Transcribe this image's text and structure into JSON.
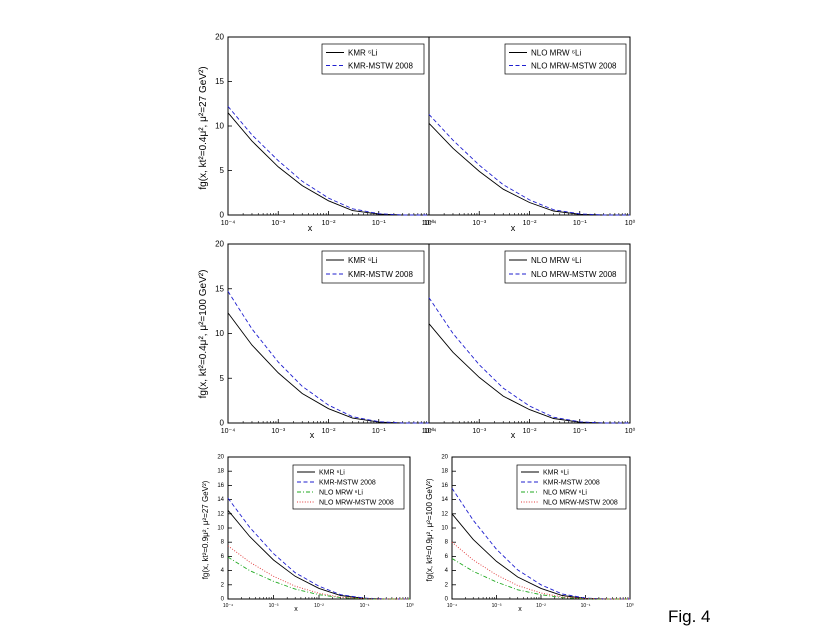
{
  "caption": "Fig. 4",
  "colors": {
    "kmr_li": "#000000",
    "kmr_mstw": "#1f1fcf",
    "nlo_li": "#22aa22",
    "nlo_mstw": "#e03a3a"
  },
  "y_labels": {
    "row1": "fg(x, kt²=0.4μ², μ²=27 GeV²)",
    "row2": "fg(x, kt²=0.4μ², μ²=100 GeV²)",
    "row3_left": "fg(x, kt²=0.9μ², μ²=27 GeV²)",
    "row3_right": "fg(x, kt²=0.9μ², μ²=100 GeV²)"
  },
  "chart_data": [
    {
      "type": "line",
      "panel": "row1-left",
      "xscale": "log",
      "xlim": [
        0.0001,
        1
      ],
      "ylim": [
        0,
        20
      ],
      "xlabel": "x",
      "ylabel": "fg(x, kt²=0.4μ², μ²=27 GeV²)",
      "yticks": [
        "0",
        "5",
        "10",
        "15",
        "20"
      ],
      "xticks": [
        "10⁻⁴",
        "10⁻³",
        "10⁻²",
        "10⁻¹",
        "10⁰"
      ],
      "legend_position": "top-right",
      "series": [
        {
          "name": "KMR ⁶Li",
          "style": "solid",
          "color": "#000000",
          "x": [
            0.0001,
            0.0003,
            0.001,
            0.003,
            0.01,
            0.03,
            0.1,
            0.3,
            1
          ],
          "y": [
            11.5,
            8.3,
            5.4,
            3.3,
            1.6,
            0.5,
            0.1,
            0.0,
            0.0
          ]
        },
        {
          "name": "KMR-MSTW 2008",
          "style": "dashed",
          "color": "#1f1fcf",
          "x": [
            0.0001,
            0.0003,
            0.001,
            0.003,
            0.01,
            0.03,
            0.1,
            0.3,
            1
          ],
          "y": [
            12.2,
            9.0,
            6.1,
            3.8,
            1.9,
            0.7,
            0.15,
            0.0,
            0.0
          ]
        }
      ]
    },
    {
      "type": "line",
      "panel": "row1-right",
      "xscale": "log",
      "xlim": [
        0.0001,
        1
      ],
      "ylim": [
        0,
        20
      ],
      "xlabel": "x",
      "xticks": [
        "10⁻⁴",
        "10⁻³",
        "10⁻²",
        "10⁻¹",
        "10⁰"
      ],
      "legend_position": "top-right",
      "series": [
        {
          "name": "NLO MRW ⁶Li",
          "style": "solid",
          "color": "#000000",
          "x": [
            0.0001,
            0.0003,
            0.001,
            0.003,
            0.01,
            0.03,
            0.1,
            0.3,
            1
          ],
          "y": [
            10.3,
            7.5,
            4.9,
            2.9,
            1.4,
            0.45,
            0.08,
            0.0,
            0.0
          ]
        },
        {
          "name": "NLO MRW-MSTW 2008",
          "style": "dashed",
          "color": "#1f1fcf",
          "x": [
            0.0001,
            0.0003,
            0.001,
            0.003,
            0.01,
            0.03,
            0.1,
            0.3,
            1
          ],
          "y": [
            11.3,
            8.4,
            5.6,
            3.4,
            1.7,
            0.6,
            0.12,
            0.0,
            0.0
          ]
        }
      ]
    },
    {
      "type": "line",
      "panel": "row2-left",
      "xscale": "log",
      "xlim": [
        0.0001,
        1
      ],
      "ylim": [
        0,
        20
      ],
      "xlabel": "x",
      "ylabel": "fg(x, kt²=0.4μ², μ²=100 GeV²)",
      "yticks": [
        "0",
        "5",
        "10",
        "15",
        "20"
      ],
      "xticks": [
        "10⁻⁴",
        "10⁻³",
        "10⁻²",
        "10⁻¹",
        "10⁰"
      ],
      "legend_position": "top-right",
      "series": [
        {
          "name": "KMR ⁶Li",
          "style": "solid",
          "color": "#000000",
          "x": [
            0.0001,
            0.0003,
            0.001,
            0.003,
            0.01,
            0.03,
            0.1,
            0.3,
            1
          ],
          "y": [
            12.3,
            8.7,
            5.6,
            3.3,
            1.6,
            0.55,
            0.1,
            0.0,
            0.0
          ]
        },
        {
          "name": "KMR-MSTW 2008",
          "style": "dashed",
          "color": "#1f1fcf",
          "x": [
            0.0001,
            0.0003,
            0.001,
            0.003,
            0.01,
            0.03,
            0.1,
            0.3,
            1
          ],
          "y": [
            14.7,
            10.5,
            6.8,
            4.1,
            2.0,
            0.7,
            0.15,
            0.0,
            0.0
          ]
        }
      ]
    },
    {
      "type": "line",
      "panel": "row2-right",
      "xscale": "log",
      "xlim": [
        0.0001,
        1
      ],
      "ylim": [
        0,
        20
      ],
      "xlabel": "x",
      "xticks": [
        "10⁻⁴",
        "10⁻³",
        "10⁻²",
        "10⁻¹",
        "10⁰"
      ],
      "legend_position": "top-right",
      "series": [
        {
          "name": "NLO MRW ⁶Li",
          "style": "solid",
          "color": "#000000",
          "x": [
            0.0001,
            0.0003,
            0.001,
            0.003,
            0.01,
            0.03,
            0.1,
            0.3,
            1
          ],
          "y": [
            11.1,
            7.9,
            5.1,
            3.0,
            1.5,
            0.5,
            0.09,
            0.0,
            0.0
          ]
        },
        {
          "name": "NLO MRW-MSTW 2008",
          "style": "dashed",
          "color": "#1f1fcf",
          "x": [
            0.0001,
            0.0003,
            0.001,
            0.003,
            0.01,
            0.03,
            0.1,
            0.3,
            1
          ],
          "y": [
            14.0,
            10.0,
            6.5,
            3.9,
            1.9,
            0.65,
            0.13,
            0.0,
            0.0
          ]
        }
      ]
    },
    {
      "type": "line",
      "panel": "row3-left",
      "xscale": "log",
      "xlim": [
        0.0001,
        1
      ],
      "ylim": [
        0,
        20
      ],
      "xlabel": "x",
      "ylabel": "fg(x, kt²=0.9μ², μ²=27 GeV²)",
      "yticks": [
        "0",
        "2",
        "4",
        "6",
        "8",
        "10",
        "12",
        "14",
        "16",
        "18",
        "20"
      ],
      "xticks": [
        "10⁻⁴",
        "10⁻³",
        "10⁻²",
        "10⁻¹",
        "10⁰"
      ],
      "legend_position": "top-right",
      "series": [
        {
          "name": "KMR ⁶Li",
          "style": "solid",
          "color": "#000000",
          "x": [
            0.0001,
            0.0003,
            0.001,
            0.003,
            0.01,
            0.03,
            0.1,
            0.3,
            1
          ],
          "y": [
            12.5,
            8.8,
            5.5,
            3.2,
            1.5,
            0.5,
            0.08,
            0.0,
            0.0
          ]
        },
        {
          "name": "KMR-MSTW 2008",
          "style": "dashed",
          "color": "#1f1fcf",
          "x": [
            0.0001,
            0.0003,
            0.001,
            0.003,
            0.01,
            0.03,
            0.1,
            0.3,
            1
          ],
          "y": [
            14.2,
            10.1,
            6.4,
            3.7,
            1.8,
            0.6,
            0.12,
            0.0,
            0.0
          ]
        },
        {
          "name": "NLO MRW ⁶Li",
          "style": "dashdot",
          "color": "#22aa22",
          "x": [
            0.0001,
            0.0003,
            0.001,
            0.003,
            0.01,
            0.03,
            0.1,
            0.3,
            1
          ],
          "y": [
            5.9,
            4.0,
            2.5,
            1.4,
            0.6,
            0.2,
            0.03,
            0.0,
            0.0
          ]
        },
        {
          "name": "NLO MRW-MSTW 2008",
          "style": "dotted",
          "color": "#e03a3a",
          "x": [
            0.0001,
            0.0003,
            0.001,
            0.003,
            0.01,
            0.03,
            0.1,
            0.3,
            1
          ],
          "y": [
            7.5,
            5.2,
            3.2,
            1.8,
            0.8,
            0.25,
            0.04,
            0.0,
            0.0
          ]
        }
      ]
    },
    {
      "type": "line",
      "panel": "row3-right",
      "xscale": "log",
      "xlim": [
        0.0001,
        1
      ],
      "ylim": [
        0,
        20
      ],
      "xlabel": "x",
      "ylabel": "fg(x, kt²=0.9μ², μ²=100 GeV²)",
      "yticks": [
        "0",
        "2",
        "4",
        "6",
        "8",
        "10",
        "12",
        "14",
        "16",
        "18",
        "20"
      ],
      "xticks": [
        "10⁻⁴",
        "10⁻³",
        "10⁻²",
        "10⁻¹",
        "10⁰"
      ],
      "legend_position": "top-right",
      "series": [
        {
          "name": "KMR ⁶Li",
          "style": "solid",
          "color": "#000000",
          "x": [
            0.0001,
            0.0003,
            0.001,
            0.003,
            0.01,
            0.03,
            0.1,
            0.3,
            1
          ],
          "y": [
            12.0,
            8.4,
            5.3,
            3.1,
            1.5,
            0.5,
            0.08,
            0.0,
            0.0
          ]
        },
        {
          "name": "KMR-MSTW 2008",
          "style": "dashed",
          "color": "#1f1fcf",
          "x": [
            0.0001,
            0.0003,
            0.001,
            0.003,
            0.01,
            0.03,
            0.1,
            0.3,
            1
          ],
          "y": [
            15.6,
            11.1,
            7.0,
            4.1,
            2.0,
            0.7,
            0.13,
            0.0,
            0.0
          ]
        },
        {
          "name": "NLO MRW ⁶Li",
          "style": "dashdot",
          "color": "#22aa22",
          "x": [
            0.0001,
            0.0003,
            0.001,
            0.003,
            0.01,
            0.03,
            0.1,
            0.3,
            1
          ],
          "y": [
            5.7,
            3.9,
            2.4,
            1.3,
            0.6,
            0.2,
            0.03,
            0.0,
            0.0
          ]
        },
        {
          "name": "NLO MRW-MSTW 2008",
          "style": "dotted",
          "color": "#e03a3a",
          "x": [
            0.0001,
            0.0003,
            0.001,
            0.003,
            0.01,
            0.03,
            0.1,
            0.3,
            1
          ],
          "y": [
            8.0,
            5.5,
            3.4,
            1.9,
            0.85,
            0.28,
            0.05,
            0.0,
            0.0
          ]
        }
      ]
    }
  ]
}
